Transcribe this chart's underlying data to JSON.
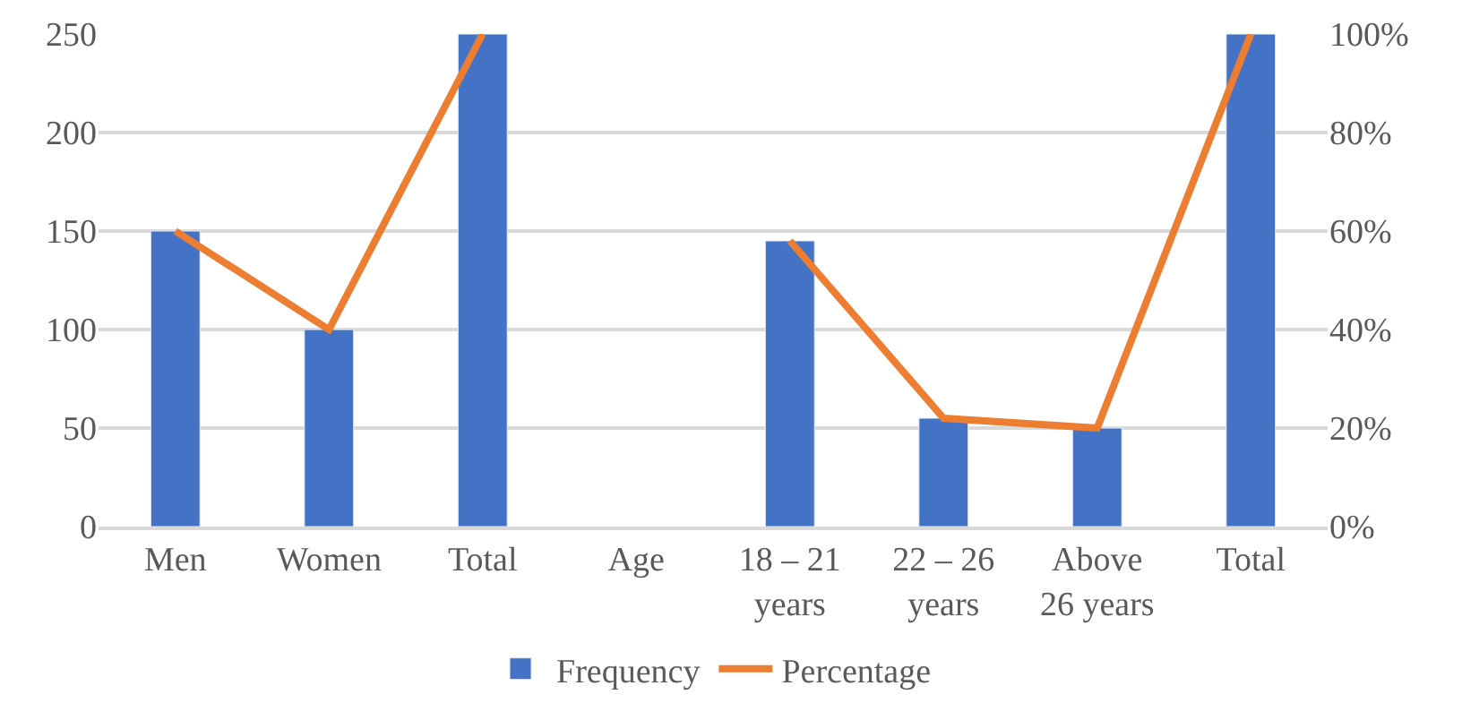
{
  "chart_data": {
    "type": "bar",
    "categories": [
      "Men",
      "Women",
      "Total",
      "Age",
      "18 – 21 years",
      "22 – 26 years",
      "Above 26 years",
      "Total"
    ],
    "series": [
      {
        "name": "Frequency",
        "color": "#4472c4",
        "values": [
          150,
          100,
          250,
          null,
          145,
          55,
          50,
          250
        ]
      },
      {
        "name": "Percentage",
        "type": "line",
        "axis": "y2",
        "color": "#ed7d31",
        "values": [
          60,
          40,
          100,
          null,
          58,
          22,
          20,
          100
        ]
      }
    ],
    "ylim": [
      0,
      250
    ],
    "yticks": [
      0,
      50,
      100,
      150,
      200,
      250
    ],
    "y2lim": [
      0,
      100
    ],
    "y2ticks": [
      {
        "value": 0,
        "label": "0%"
      },
      {
        "value": 20,
        "label": "20%"
      },
      {
        "value": 40,
        "label": "40%"
      },
      {
        "value": 60,
        "label": "60%"
      },
      {
        "value": 80,
        "label": "80%"
      },
      {
        "value": 100,
        "label": "100%"
      }
    ],
    "grid": "y",
    "legend": "bottom",
    "marker": "none",
    "line_style": "solid"
  }
}
